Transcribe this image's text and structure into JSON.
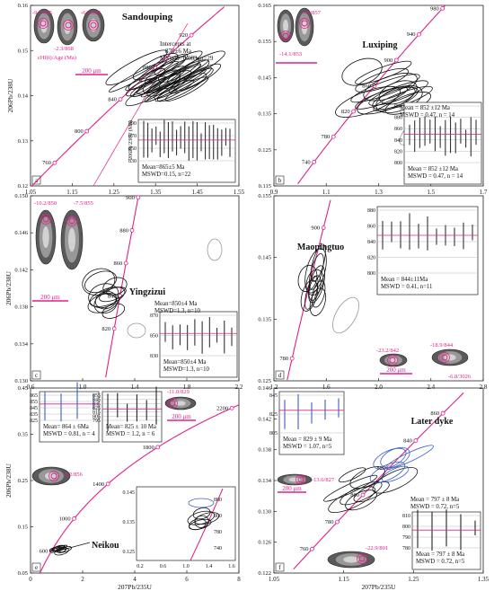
{
  "chart_data": [
    {
      "type": "scatter",
      "panel": "a",
      "title": "Sandouping",
      "ylabel": "206Pb/238U",
      "xlim": [
        1.05,
        1.6
      ],
      "ylim": [
        0.12,
        0.16
      ],
      "xticks": [
        "1.05",
        "1.15",
        "1.25",
        "1.35",
        "1.45",
        "1.55"
      ],
      "yticks": [
        "0.12",
        "0.13",
        "0.14",
        "0.15",
        "0.16"
      ],
      "concordia_ages": [
        760,
        800,
        840,
        880,
        920
      ],
      "annotations": [
        "Intercepts at",
        "870±6 Ma",
        "MSWD=0.083, n=29",
        "200 μm",
        "-9.7/865",
        "-6.3/909",
        "-2.3/868",
        "εHf(t)/Age (Ma)"
      ],
      "inset": {
        "ylabel": "206Pb/238U (Ma)",
        "yticks": [
          "830",
          "850",
          "870",
          "890"
        ],
        "text": [
          "Mean=865±5 Ma",
          "MSWD=0.15, n=22"
        ]
      }
    },
    {
      "type": "scatter",
      "panel": "b",
      "title": "Luxiping",
      "xlim": [
        0.9,
        1.8
      ],
      "ylim": [
        0.115,
        0.165
      ],
      "xticks": [
        "0.9",
        "1.1",
        "1.3",
        "1.5",
        "1.7"
      ],
      "yticks": [
        "0.115",
        "0.125",
        "0.135",
        "0.145",
        "0.155",
        "0.165"
      ],
      "concordia_ages": [
        740,
        780,
        820,
        860,
        900,
        940,
        980
      ],
      "annotations": [
        "-9.6/857",
        "-14.1/853"
      ],
      "inset": {
        "yticks": [
          "800",
          "820",
          "840",
          "860",
          "880",
          "900"
        ],
        "text": [
          "Mean = 852 ±12 Ma",
          "MSWD = 0.47, n = 14"
        ]
      }
    },
    {
      "type": "scatter",
      "panel": "c",
      "title": "Yingzizui",
      "ylabel": "206Pb/238U",
      "xlim": [
        0.6,
        2.2
      ],
      "ylim": [
        0.13,
        0.15
      ],
      "xticks": [
        "0.6",
        "1.0",
        "1.4",
        "1.8",
        "2.2"
      ],
      "yticks": [
        "0.130",
        "0.134",
        "0.138",
        "0.142",
        "0.146",
        "0.150"
      ],
      "concordia_ages": [
        820,
        840,
        860,
        880,
        900
      ],
      "annotations": [
        "-10.2/850",
        "-7.5/855",
        "200 μm"
      ],
      "inset": {
        "yticks": [
          "830",
          "850",
          "870"
        ],
        "text": [
          "Mean=850±4 Ma",
          "MSWD=1.3, n=10"
        ]
      }
    },
    {
      "type": "scatter",
      "panel": "d",
      "title": "Maopingtuo",
      "xlim": [
        1.0,
        2.8
      ],
      "ylim": [
        0.125,
        0.155
      ],
      "xticks": [
        "1.2",
        "1.6",
        "2.0",
        "2.4",
        "2.8"
      ],
      "yticks": [
        "0.125",
        "0.135",
        "0.145",
        "0.155"
      ],
      "concordia_ages": [
        780,
        900,
        940
      ],
      "annotations": [
        "-23.2/842",
        "-18.9/844",
        "-6.8/3026",
        "200 μm"
      ],
      "inset": {
        "yticks": [
          "800",
          "820",
          "840",
          "860",
          "880"
        ],
        "text": [
          "Mean = 844±11Ma",
          "MSWD = 0.41, n=11"
        ]
      }
    },
    {
      "type": "scatter",
      "panel": "e",
      "title": "Neikou",
      "xlabel": "207Pb/235U",
      "ylabel": "206Pb/238U",
      "xlim": [
        0,
        8
      ],
      "ylim": [
        0.05,
        0.45
      ],
      "xticks": [
        "0",
        "2",
        "4",
        "6",
        "8"
      ],
      "yticks": [
        "0.05",
        "0.15",
        "0.25",
        "0.35",
        "0.45"
      ],
      "concordia_ages": [
        600,
        1000,
        1400,
        1800,
        2200
      ],
      "annotations": [
        "-11.0/829",
        "-9.2/856",
        "200 μm"
      ],
      "inset_left": {
        "yticks": [
          "825",
          "835",
          "845",
          "855",
          "865"
        ],
        "text": [
          "Mean= 864 ± 6Ma",
          "MSWD = 0.81, n = 4"
        ]
      },
      "inset_right": {
        "yticks": [
          "795",
          "805",
          "815",
          "825",
          "835",
          "845",
          "855"
        ],
        "text": [
          "Mean= 825 ± 10 Ma",
          "MSWD = 1.2, n = 6"
        ]
      },
      "inset_zoom": {
        "xticks": [
          "0.2",
          "0.6",
          "1.0",
          "1.4",
          "1.6"
        ],
        "yticks": [
          "0.125",
          "0.135",
          "0.145"
        ],
        "ages": [
          740,
          780,
          800,
          880
        ]
      }
    },
    {
      "type": "scatter",
      "panel": "f",
      "title": "Later dyke",
      "xlabel": "207Pb/235U",
      "xlim": [
        1.05,
        1.4
      ],
      "ylim": [
        0.122,
        0.146
      ],
      "xticks": [
        "1.05",
        "1.15",
        "1.25",
        "1.35"
      ],
      "yticks": [
        "0.122",
        "0.126",
        "0.130",
        "0.134",
        "0.138",
        "0.142",
        "0.146"
      ],
      "concordia_ages": [
        760,
        780,
        800,
        820,
        840,
        860,
        880
      ],
      "annotations": [
        "-13.6/827",
        "-22.9/801",
        "200 μm"
      ],
      "inset_blue": {
        "yticks": [
          "805",
          "825",
          "845"
        ],
        "text": [
          "Mean = 829 ± 9 Ma",
          "MSWD = 1.07, n=5"
        ]
      },
      "inset_black": {
        "yticks": [
          "780",
          "790",
          "800",
          "810"
        ],
        "text": [
          "Mean = 797 ± 8 Ma",
          "MSWD = 0.72, n=5"
        ]
      }
    }
  ],
  "style": {
    "concordia": "#e0218a",
    "ellipse": "#111111",
    "ellipse_blue": "#3b5fc0",
    "ellipse_grey": "#999999",
    "mean_line": "#e0218a"
  }
}
